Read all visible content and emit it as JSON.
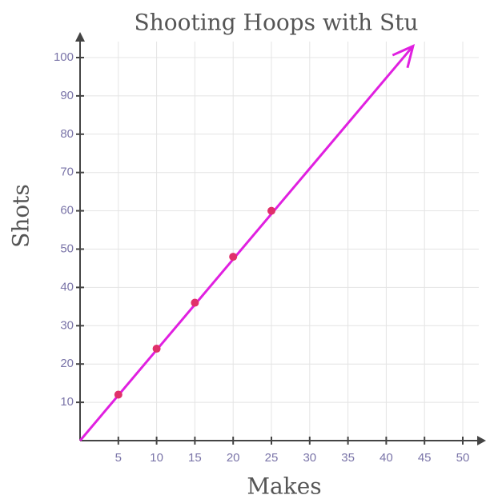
{
  "chart_data": {
    "type": "scatter",
    "title": "Shooting Hoops with Stu",
    "x_label": "Makes",
    "y_label": "Shots",
    "x": [
      5,
      10,
      15,
      20,
      25
    ],
    "values": [
      12,
      24,
      36,
      48,
      60
    ],
    "color": "#e0306a",
    "trend": {
      "x": [
        0,
        43.5
      ],
      "values": [
        0,
        103
      ],
      "color": "#e020e0"
    },
    "xlim": [
      0,
      50
    ],
    "xticks": [
      5,
      10,
      15,
      20,
      25,
      30,
      35,
      40,
      45,
      50
    ],
    "ylim": [
      0,
      100
    ],
    "yticks": [
      10,
      20,
      30,
      40,
      50,
      60,
      70,
      80,
      90,
      100
    ],
    "grid": true
  }
}
